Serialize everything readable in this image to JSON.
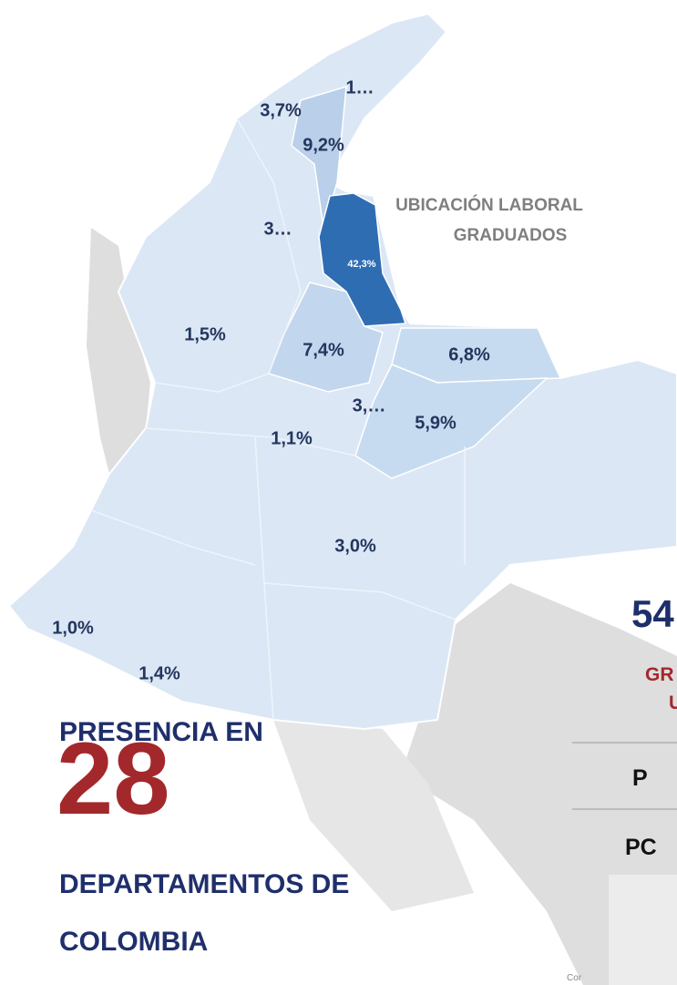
{
  "map": {
    "annotation": [
      "UBICACIÓN LABORAL",
      "GRADUADOS"
    ],
    "regions": [
      {
        "label": "1…"
      },
      {
        "label": "3,7%"
      },
      {
        "label": "9,2%"
      },
      {
        "label": "3…"
      },
      {
        "label": "42,3%"
      },
      {
        "label": "1,5%"
      },
      {
        "label": "7,4%"
      },
      {
        "label": "6,8%"
      },
      {
        "label": "3,…"
      },
      {
        "label": "5,9%"
      },
      {
        "label": "1,1%"
      },
      {
        "label": "3,0%"
      },
      {
        "label": "1,0%"
      },
      {
        "label": "1,4%"
      }
    ],
    "headline": {
      "line1": "PRESENCIA EN",
      "number": "28",
      "line2": "DEPARTAMENTOS DE",
      "line3": "COLOMBIA"
    },
    "cropped": [
      "54",
      "GR",
      "U",
      "P",
      "PC",
      "Cor"
    ]
  }
}
